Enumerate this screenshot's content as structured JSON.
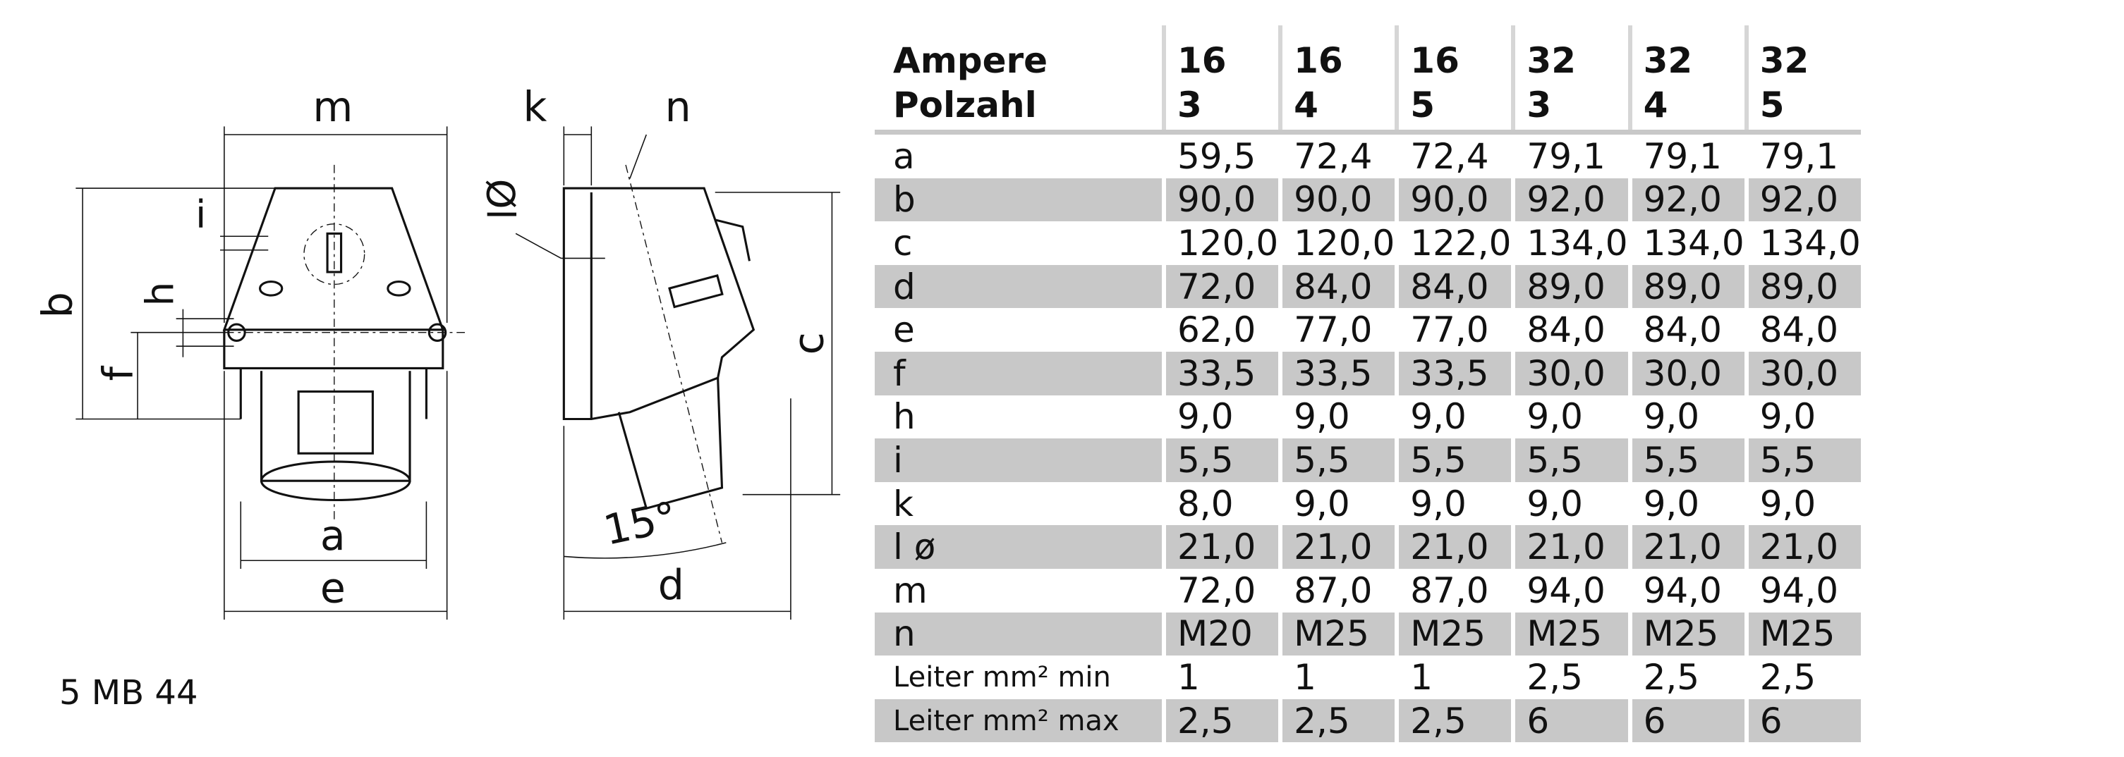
{
  "drawing": {
    "front_view": {
      "m": "m",
      "i": "i",
      "h": "h",
      "b": "b",
      "f": "f",
      "a": "a",
      "e": "e"
    },
    "side_view": {
      "k": "k",
      "n": "n",
      "diameter": "Øl",
      "c": "c",
      "angle": "15°",
      "d": "d"
    },
    "caption": "5 MB 44"
  },
  "table": {
    "header": {
      "ampere_label": "Ampere",
      "polzahl_label": "Polzahl",
      "columns": [
        {
          "ampere": "16",
          "polzahl": "3"
        },
        {
          "ampere": "16",
          "polzahl": "4"
        },
        {
          "ampere": "16",
          "polzahl": "5"
        },
        {
          "ampere": "32",
          "polzahl": "3"
        },
        {
          "ampere": "32",
          "polzahl": "4"
        },
        {
          "ampere": "32",
          "polzahl": "5"
        }
      ]
    },
    "rows": [
      [
        "a",
        "59,5",
        "72,4",
        "72,4",
        "79,1",
        "79,1",
        "79,1"
      ],
      [
        "b",
        "90,0",
        "90,0",
        "90,0",
        "92,0",
        "92,0",
        "92,0"
      ],
      [
        "c",
        "120,0",
        "120,0",
        "122,0",
        "134,0",
        "134,0",
        "134,0"
      ],
      [
        "d",
        "72,0",
        "84,0",
        "84,0",
        "89,0",
        "89,0",
        "89,0"
      ],
      [
        "e",
        "62,0",
        "77,0",
        "77,0",
        "84,0",
        "84,0",
        "84,0"
      ],
      [
        "f",
        "33,5",
        "33,5",
        "33,5",
        "30,0",
        "30,0",
        "30,0"
      ],
      [
        "h",
        "9,0",
        "9,0",
        "9,0",
        "9,0",
        "9,0",
        "9,0"
      ],
      [
        "i",
        "5,5",
        "5,5",
        "5,5",
        "5,5",
        "5,5",
        "5,5"
      ],
      [
        "k",
        "8,0",
        "9,0",
        "9,0",
        "9,0",
        "9,0",
        "9,0"
      ],
      [
        "l ø",
        "21,0",
        "21,0",
        "21,0",
        "21,0",
        "21,0",
        "21,0"
      ],
      [
        "m",
        "72,0",
        "87,0",
        "87,0",
        "94,0",
        "94,0",
        "94,0"
      ],
      [
        "n",
        "M20",
        "M25",
        "M25",
        "M25",
        "M25",
        "M25"
      ],
      [
        "Leiter mm² min",
        "1",
        "1",
        "1",
        "2,5",
        "2,5",
        "2,5"
      ],
      [
        "Leiter mm² max",
        "2,5",
        "2,5",
        "2,5",
        "6",
        "6",
        "6"
      ]
    ]
  }
}
